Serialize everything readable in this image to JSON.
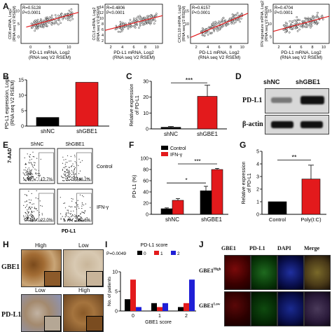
{
  "panel_letters": [
    "A",
    "B",
    "C",
    "D",
    "E",
    "F",
    "G",
    "H",
    "I",
    "J"
  ],
  "colors": {
    "black": "#000000",
    "red": "#e31a1c",
    "blue": "#1f1fd6",
    "regression": "#e31a1c",
    "scatter_fill": "#ffffff"
  },
  "panelA": [
    {
      "ylabel": "CD8 mRNA, Log2",
      "xlabel": "PD-L1 mRNA, Log2",
      "xlabel2": "(RNA seq V2 RSEM)",
      "ylabel2": "(RNA seq V2 RSEM)",
      "r": "R=0.5128",
      "p": "P<0.0001",
      "xticks": [
        "0",
        "5",
        "10"
      ],
      "yticks": [
        "0",
        "5",
        "10"
      ]
    },
    {
      "ylabel": "CCL5 mRNA, Log2",
      "xlabel": "PD-L1 mRNA, Log2",
      "xlabel2": "(RNA seq V2 RSEM)",
      "ylabel2": "(RNA seq V2 RSEM)",
      "r": "R=0.4806",
      "p": "P<0.0001",
      "xticks": [
        "2",
        "4",
        "6",
        "8",
        "10"
      ],
      "yticks": [
        "2",
        "4",
        "6",
        "8",
        "10",
        "12",
        "14"
      ]
    },
    {
      "ylabel": "CXCL10 mRNA, Log2",
      "xlabel": "PD-L1 mRNA, Log2",
      "xlabel2": "(RNA seq V2 RSEM)",
      "ylabel2": "(RNA seq V2 RSEM)",
      "r": "R=0.6157",
      "p": "P<0.0001",
      "xticks": [
        "2",
        "4",
        "6",
        "8",
        "10"
      ],
      "yticks": [
        "5",
        "10",
        "15"
      ]
    },
    {
      "ylabel": "IFN signature mRNA, Log2",
      "xlabel": "PD-L1 mRNA, Log2",
      "xlabel2": "(RNA seq V2 RSEM)",
      "ylabel2": "(RNA seq V2 RSEM)",
      "r": "R=0.4704",
      "p": "P<0.0001",
      "xticks": [
        "2",
        "4",
        "6",
        "8",
        "10"
      ],
      "yticks": [
        "5",
        "10",
        "15"
      ]
    }
  ],
  "chart_data": [
    {
      "panel": "A1",
      "type": "scatter",
      "regression": {
        "x": [
          1,
          11
        ],
        "y": [
          5.0,
          9.5
        ]
      },
      "xlim": [
        0,
        11
      ],
      "ylim": [
        0,
        12
      ]
    },
    {
      "panel": "A2",
      "type": "scatter",
      "regression": {
        "x": [
          1,
          11
        ],
        "y": [
          6.0,
          10.5
        ]
      },
      "xlim": [
        1,
        11
      ],
      "ylim": [
        2,
        14
      ]
    },
    {
      "panel": "A3",
      "type": "scatter",
      "regression": {
        "x": [
          1,
          11
        ],
        "y": [
          5.0,
          13.0
        ]
      },
      "xlim": [
        1,
        11
      ],
      "ylim": [
        3,
        16
      ]
    },
    {
      "panel": "A4",
      "type": "scatter",
      "regression": {
        "x": [
          1,
          11
        ],
        "y": [
          7.0,
          12.0
        ]
      },
      "xlim": [
        1,
        11
      ],
      "ylim": [
        3,
        16
      ]
    },
    {
      "panel": "B",
      "type": "bar",
      "categories": [
        "shNC",
        "shGBE1"
      ],
      "values": [
        2.8,
        14.2
      ],
      "colors": [
        "#000000",
        "#e31a1c"
      ],
      "ylabel": "PD-L1 expression, Log2",
      "ylabel2": "(RNA seq V2 RSEM)",
      "yticks": [
        "0",
        "5",
        "10",
        "15"
      ],
      "ylim": [
        0,
        15
      ]
    },
    {
      "panel": "C",
      "type": "bar",
      "categories": [
        "shNC",
        "shGBE1"
      ],
      "values": [
        1.0,
        20.5
      ],
      "errors": [
        0.5,
        7.0
      ],
      "colors": [
        "#000000",
        "#e31a1c"
      ],
      "ylabel": "Relative expression",
      "ylabel2": "of PD-L1",
      "yticks": [
        "0",
        "10",
        "20",
        "30"
      ],
      "ylim": [
        0,
        30
      ],
      "significance": "***"
    },
    {
      "panel": "F",
      "type": "bar",
      "categories": [
        "shNC",
        "shGBE1"
      ],
      "series": [
        {
          "name": "Control",
          "values": [
            10,
            42
          ],
          "errors": [
            1.5,
            8
          ],
          "color": "#000000"
        },
        {
          "name": "IFN-γ",
          "values": [
            25,
            80
          ],
          "errors": [
            3,
            2
          ],
          "color": "#e31a1c"
        }
      ],
      "ylabel": "PD-L1 (%)",
      "yticks": [
        "0",
        "20",
        "40",
        "60",
        "80",
        "100"
      ],
      "ylim": [
        0,
        100
      ],
      "significance": [
        "*",
        "***"
      ]
    },
    {
      "panel": "G",
      "type": "bar",
      "categories": [
        "Control",
        "Poly(I:C)"
      ],
      "values": [
        1.0,
        2.8
      ],
      "errors": [
        0,
        1.1
      ],
      "colors": [
        "#000000",
        "#e31a1c"
      ],
      "ylabel": "Relative expression",
      "ylabel2": "of PD-L1",
      "yticks": [
        "0",
        "1",
        "2",
        "3",
        "4",
        "5"
      ],
      "ylim": [
        0,
        5
      ],
      "significance": "**"
    },
    {
      "panel": "I",
      "type": "bar",
      "title": "PD-L1 score",
      "categories": [
        "0",
        "1",
        "2"
      ],
      "xlabel": "GBE1 score",
      "ylabel": "No. of patients",
      "p": "P=0.0049",
      "series": [
        {
          "name": "0",
          "values": [
            3,
            2,
            1
          ],
          "color": "#000000"
        },
        {
          "name": "1",
          "values": [
            8,
            1,
            2
          ],
          "color": "#e31a1c"
        },
        {
          "name": "2",
          "values": [
            1,
            2,
            8
          ],
          "color": "#1f1fd6"
        }
      ],
      "yticks": [
        "0",
        "5",
        "10"
      ],
      "ylim": [
        0,
        10
      ]
    }
  ],
  "panelD": {
    "lanes": [
      "shNC",
      "shGBE1"
    ],
    "rows": [
      "PD-L1",
      "β-actin"
    ]
  },
  "panelE": {
    "cols": [
      "ShNC",
      "ShGBE1"
    ],
    "rows": [
      "Control",
      "IFN-γ"
    ],
    "pcts": [
      "12.7%",
      "46.2%",
      "22.0%",
      "80.6%"
    ],
    "ylabel": "7-AAD",
    "xlabel": "PD-L1"
  },
  "panelH": {
    "top": [
      "High",
      "Low"
    ],
    "bottom": [
      "Low",
      "High"
    ],
    "rows": [
      "GBE1",
      "PD-L1"
    ]
  },
  "panelJ": {
    "cols": [
      "GBE1",
      "PD-L1",
      "DAPI",
      "Merge"
    ],
    "rows": [
      "GBE1",
      "GBE1"
    ],
    "row_sup": [
      "High",
      "Low"
    ]
  }
}
